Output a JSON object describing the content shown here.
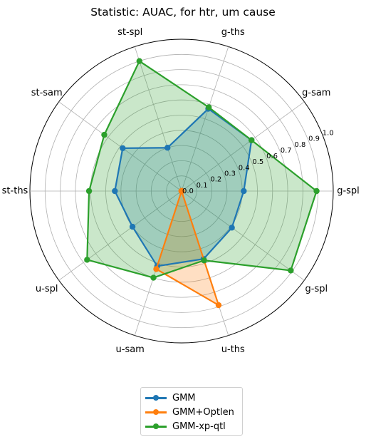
{
  "chart_data": {
    "type": "radar",
    "title": "Statistic: AUAC, for htr, um cause",
    "axes": [
      "g-spl",
      "g-sam",
      "g-ths",
      "st-spl",
      "st-sam",
      "st-ths",
      "u-spl",
      "u-sam",
      "u-ths",
      "g-spl"
    ],
    "radial_range": [
      0.0,
      1.0
    ],
    "radial_ticks": [
      "0.0",
      "0.1",
      "0.2",
      "0.3",
      "0.4",
      "0.5",
      "0.6",
      "0.7",
      "0.8",
      "0.9",
      "1.0"
    ],
    "grid": true,
    "legend_position": "bottom",
    "series": [
      {
        "name": "GMM",
        "color": "#1f77b4",
        "values": [
          0.41,
          0.57,
          0.57,
          0.3,
          0.48,
          0.44,
          0.4,
          0.52,
          0.47,
          0.41
        ]
      },
      {
        "name": "GMM+Optlen",
        "color": "#ff7f0e",
        "values": [
          0.0,
          0.0,
          0.0,
          0.0,
          0.0,
          0.0,
          0.0,
          0.54,
          0.79,
          0.0
        ]
      },
      {
        "name": "GMM-xp-qtl",
        "color": "#2ca02c",
        "values": [
          0.89,
          0.57,
          0.58,
          0.9,
          0.63,
          0.61,
          0.77,
          0.6,
          0.48,
          0.89
        ]
      }
    ]
  }
}
